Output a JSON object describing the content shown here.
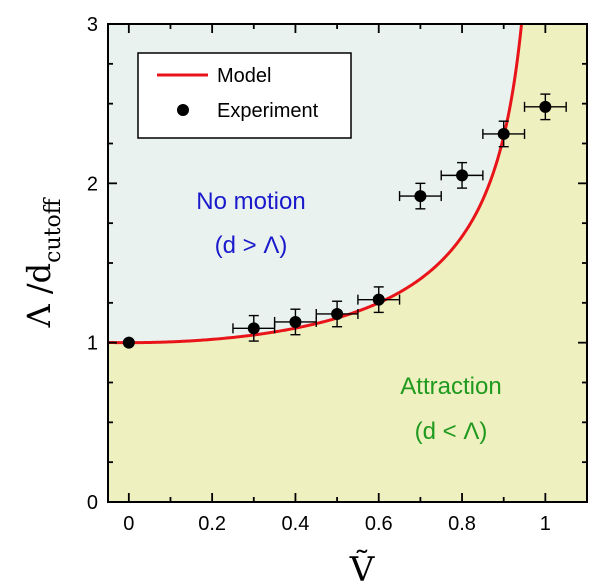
{
  "chart_data": {
    "type": "scatter",
    "xlabel": "Ṽ",
    "ylabel_main": "Λ /d",
    "ylabel_sub": "cutoff",
    "xlim": [
      -0.05,
      1.1
    ],
    "ylim": [
      0,
      3
    ],
    "x_ticks": [
      "0",
      "0.2",
      "0.4",
      "0.6",
      "0.8",
      "1"
    ],
    "x_tick_values": [
      0,
      0.2,
      0.4,
      0.6,
      0.8,
      1
    ],
    "y_ticks": [
      "0",
      "1",
      "2",
      "3"
    ],
    "y_tick_values": [
      0,
      1,
      2,
      3
    ],
    "legend_position": "top-left",
    "colors": {
      "upper_region": "#e9f2ee",
      "lower_region": "#eff0bf",
      "model_line": "#e8141a",
      "points": "#000000",
      "no_motion_text": "#1a1acc",
      "attraction_text": "#1f9a1f"
    },
    "series": [
      {
        "name": "Model",
        "kind": "line",
        "function": "1/sqrt(1 - x^2)"
      },
      {
        "name": "Experiment",
        "kind": "scatter",
        "points": [
          {
            "x": 0.0,
            "y": 1.0,
            "xerr": 0.0,
            "yerr": 0.0
          },
          {
            "x": 0.3,
            "y": 1.09,
            "xerr": 0.05,
            "yerr": 0.08
          },
          {
            "x": 0.4,
            "y": 1.13,
            "xerr": 0.05,
            "yerr": 0.08
          },
          {
            "x": 0.5,
            "y": 1.18,
            "xerr": 0.05,
            "yerr": 0.08
          },
          {
            "x": 0.6,
            "y": 1.27,
            "xerr": 0.05,
            "yerr": 0.08
          },
          {
            "x": 0.7,
            "y": 1.92,
            "xerr": 0.05,
            "yerr": 0.08
          },
          {
            "x": 0.8,
            "y": 2.05,
            "xerr": 0.05,
            "yerr": 0.08
          },
          {
            "x": 0.9,
            "y": 2.31,
            "xerr": 0.05,
            "yerr": 0.08
          },
          {
            "x": 1.0,
            "y": 2.48,
            "xerr": 0.05,
            "yerr": 0.08
          }
        ]
      }
    ],
    "annotations": {
      "no_motion_line1": "No motion",
      "no_motion_line2": "(d > Λ)",
      "attraction_line1": "Attraction",
      "attraction_line2": "(d < Λ)"
    }
  }
}
